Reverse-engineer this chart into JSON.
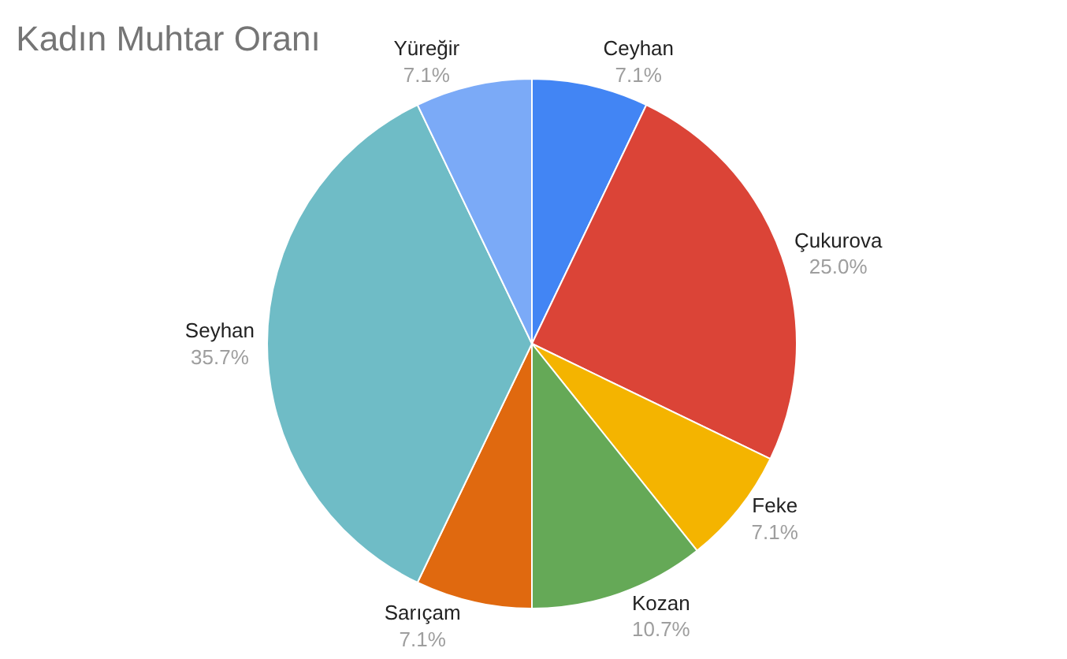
{
  "chart_data": {
    "type": "pie",
    "title": "Kadın Muhtar Oranı",
    "categories": [
      "Ceyhan",
      "Çukurova",
      "Feke",
      "Kozan",
      "Sarıçam",
      "Seyhan",
      "Yüreğir"
    ],
    "values": [
      7.1,
      25.0,
      7.1,
      10.7,
      7.1,
      35.7,
      7.1
    ],
    "value_labels": [
      "7.1%",
      "25.0%",
      "7.1%",
      "10.7%",
      "7.1%",
      "35.7%",
      "7.1%"
    ],
    "colors": [
      "#4285f4",
      "#db4437",
      "#f4b400",
      "#65a957",
      "#e0690f",
      "#6fbcc6",
      "#7baaf7"
    ],
    "legend": false
  }
}
